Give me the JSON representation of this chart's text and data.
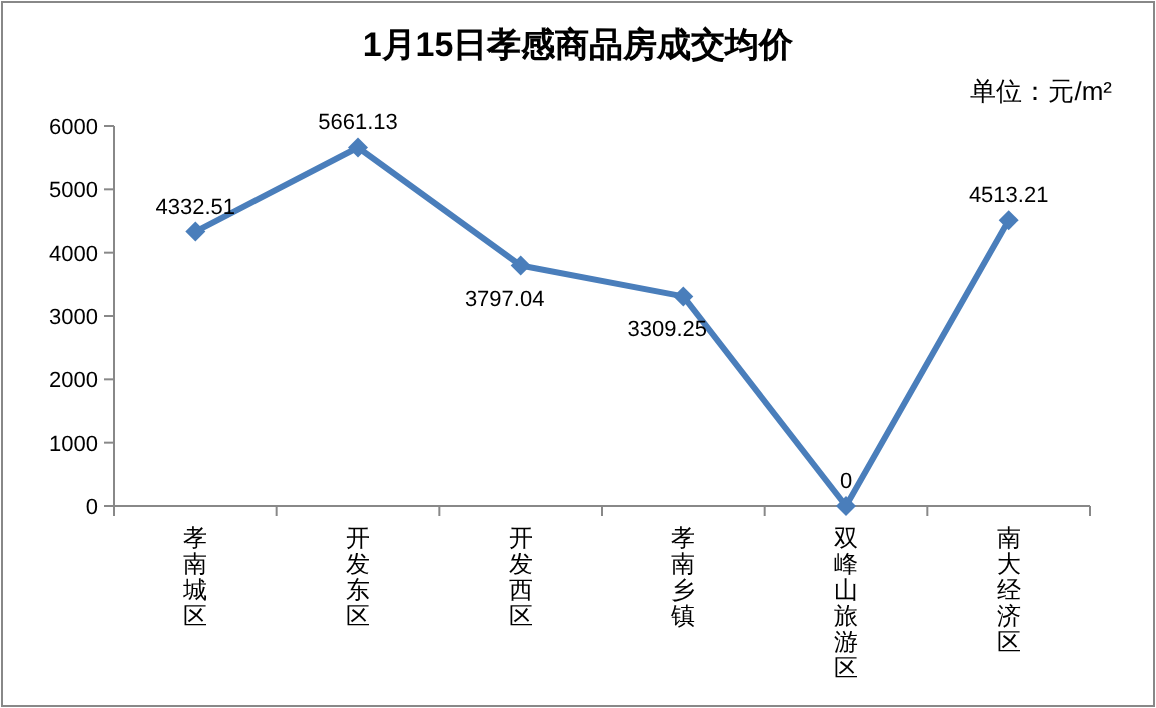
{
  "chart_data": {
    "type": "line",
    "title": "1月15日孝感商品房成交均价",
    "annotations": [
      "单位：元/m²"
    ],
    "categories": [
      "孝南城区",
      "开发东区",
      "开发西区",
      "孝南乡镇",
      "双峰山旅游区",
      "南大经济区"
    ],
    "series": [
      {
        "color": "#4a7ebb",
        "values": [
          4332.51,
          5661.13,
          3797.04,
          3309.25,
          0,
          4513.21
        ]
      }
    ],
    "ylim": [
      0,
      6000
    ],
    "yticks": [
      0,
      1000,
      2000,
      3000,
      4000,
      5000,
      6000
    ],
    "marker": "diamond",
    "data_labels": true,
    "grid": false
  }
}
